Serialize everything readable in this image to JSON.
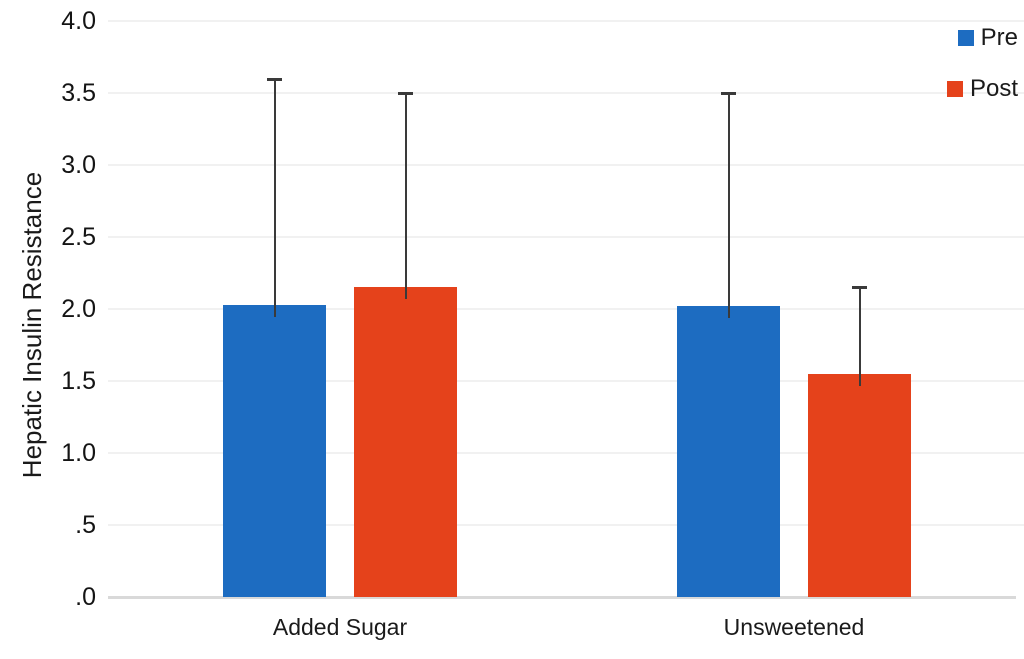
{
  "chart_data": {
    "type": "bar",
    "title": "",
    "xlabel": "",
    "ylabel": "Hepatic Insulin Resistance",
    "ylim": [
      0,
      4
    ],
    "grid": "horizontal",
    "legend_position": "top-right",
    "yticks": [
      {
        "value": 0.0,
        "label": ".0"
      },
      {
        "value": 0.5,
        "label": ".5"
      },
      {
        "value": 1.0,
        "label": "1.0"
      },
      {
        "value": 1.5,
        "label": "1.5"
      },
      {
        "value": 2.0,
        "label": "2.0"
      },
      {
        "value": 2.5,
        "label": "2.5"
      },
      {
        "value": 3.0,
        "label": "3.0"
      },
      {
        "value": 3.5,
        "label": "3.5"
      },
      {
        "value": 4.0,
        "label": "4.0"
      }
    ],
    "categories": [
      "Added Sugar",
      "Unsweetened"
    ],
    "series": [
      {
        "name": "Pre",
        "color": "#1d6cc1",
        "values": [
          2.03,
          2.02
        ],
        "error_top": [
          3.6,
          3.5
        ]
      },
      {
        "name": "Post",
        "color": "#e5421b",
        "values": [
          2.15,
          1.55
        ],
        "error_top": [
          3.5,
          2.15
        ]
      }
    ],
    "error_bar_color": "#3a3a3a"
  }
}
